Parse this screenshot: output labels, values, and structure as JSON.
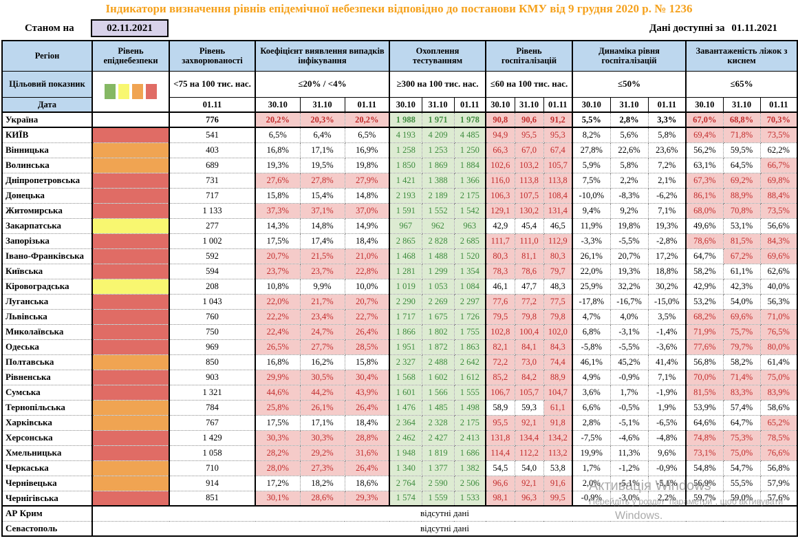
{
  "title": "Індикатори визначення рівнів епідемічної небезпеки відповідно до постанови КМУ від 9 грудня 2020 р. № 1236",
  "as_of": {
    "label": "Станом на",
    "date": "02.11.2021"
  },
  "data_available": {
    "label": "Дані доступні за",
    "date": "01.11.2021"
  },
  "colors": {
    "title_text": "#F5A11C",
    "header_bg": "#BDD7EE",
    "date_box_bg": "#D8D2EA",
    "bad_bg": "#F5CBC9",
    "bad_text": "#C22B2B",
    "good_bg": "#DDEBD2",
    "good_text": "#3D8B3D"
  },
  "legend_colors": {
    "green": "#85B864",
    "yellow": "#F8F770",
    "orange": "#F0A452",
    "red": "#E06C65"
  },
  "header": {
    "region": "Регіон",
    "target_label": "Цільовий показник",
    "date_label": "Дата",
    "groups": [
      {
        "label": "Рівень епіднебезпеки",
        "type": "level"
      },
      {
        "label": "Рівень захворюваності",
        "target": "<75 на 100 тис. нас.",
        "dates": [
          "01.11"
        ]
      },
      {
        "label": "Коефіцієнт виявлення випадків інфікування",
        "target": "≤20% / <4%",
        "dates": [
          "30.10",
          "31.10",
          "01.11"
        ]
      },
      {
        "label": "Охоплення тестуванням",
        "target": "≥300 на 100 тис. нас.",
        "dates": [
          "30.10",
          "31.10",
          "01.11"
        ]
      },
      {
        "label": "Рівень госпіталізацій",
        "target": "≤60 на 100 тис. нас.",
        "dates": [
          "30.10",
          "31.10",
          "01.11"
        ]
      },
      {
        "label": "Динаміка рівня госпіталізацій",
        "target": "≤50%",
        "dates": [
          "30.10",
          "31.10",
          "01.11"
        ]
      },
      {
        "label": "Завантаженість ліжок з киснем",
        "target": "≤65%",
        "dates": [
          "30.10",
          "31.10",
          "01.11"
        ]
      }
    ]
  },
  "thresholds": {
    "detection_max": 20,
    "hospitalization_max": 60,
    "beds_max": 65
  },
  "rows": [
    {
      "region": "Україна",
      "level": null,
      "total": true,
      "incidence": "776",
      "detection": [
        "20,2%",
        "20,3%",
        "20,2%"
      ],
      "testing": [
        "1 988",
        "1 971",
        "1 978"
      ],
      "hospitalization": [
        "90,8",
        "90,6",
        "91,2"
      ],
      "dynamics": [
        "5,5%",
        "2,8%",
        "3,3%"
      ],
      "beds": [
        "67,0%",
        "68,8%",
        "70,3%"
      ]
    },
    {
      "region": "КИЇВ",
      "level": "red",
      "incidence": "541",
      "detection": [
        "6,5%",
        "6,4%",
        "6,5%"
      ],
      "testing": [
        "4 193",
        "4 209",
        "4 485"
      ],
      "hospitalization": [
        "94,9",
        "95,5",
        "95,3"
      ],
      "dynamics": [
        "8,2%",
        "5,6%",
        "5,8%"
      ],
      "beds": [
        "69,4%",
        "71,8%",
        "73,5%"
      ]
    },
    {
      "region": "Вінницька",
      "level": "orange",
      "incidence": "403",
      "detection": [
        "16,8%",
        "17,1%",
        "16,9%"
      ],
      "testing": [
        "1 258",
        "1 253",
        "1 250"
      ],
      "hospitalization": [
        "66,3",
        "67,0",
        "67,4"
      ],
      "dynamics": [
        "27,8%",
        "22,6%",
        "23,6%"
      ],
      "beds": [
        "56,2%",
        "59,5%",
        "62,2%"
      ]
    },
    {
      "region": "Волинська",
      "level": "orange",
      "incidence": "689",
      "detection": [
        "19,3%",
        "19,5%",
        "19,8%"
      ],
      "testing": [
        "1 850",
        "1 869",
        "1 884"
      ],
      "hospitalization": [
        "102,6",
        "103,2",
        "105,7"
      ],
      "dynamics": [
        "5,9%",
        "5,8%",
        "7,2%"
      ],
      "beds": [
        "63,1%",
        "64,5%",
        "66,7%"
      ]
    },
    {
      "region": "Дніпропетровська",
      "level": "red",
      "incidence": "731",
      "detection": [
        "27,6%",
        "27,8%",
        "27,9%"
      ],
      "testing": [
        "1 421",
        "1 388",
        "1 366"
      ],
      "hospitalization": [
        "116,0",
        "113,8",
        "113,8"
      ],
      "dynamics": [
        "7,5%",
        "2,2%",
        "2,1%"
      ],
      "beds": [
        "67,3%",
        "69,2%",
        "69,8%"
      ]
    },
    {
      "region": "Донецька",
      "level": "red",
      "incidence": "717",
      "detection": [
        "15,8%",
        "15,4%",
        "14,8%"
      ],
      "testing": [
        "2 193",
        "2 189",
        "2 175"
      ],
      "hospitalization": [
        "106,3",
        "107,5",
        "108,4"
      ],
      "dynamics": [
        "-10,0%",
        "-8,3%",
        "-6,2%"
      ],
      "beds": [
        "86,1%",
        "88,9%",
        "88,4%"
      ]
    },
    {
      "region": "Житомирська",
      "level": "red",
      "incidence": "1 133",
      "detection": [
        "37,3%",
        "37,1%",
        "37,0%"
      ],
      "testing": [
        "1 591",
        "1 552",
        "1 542"
      ],
      "hospitalization": [
        "129,1",
        "130,2",
        "131,4"
      ],
      "dynamics": [
        "9,4%",
        "9,2%",
        "7,1%"
      ],
      "beds": [
        "68,0%",
        "70,8%",
        "73,5%"
      ]
    },
    {
      "region": "Закарпатська",
      "level": "yellow",
      "incidence": "277",
      "detection": [
        "14,3%",
        "14,8%",
        "14,9%"
      ],
      "testing": [
        "967",
        "962",
        "963"
      ],
      "hospitalization": [
        "42,9",
        "45,4",
        "46,5"
      ],
      "dynamics": [
        "11,9%",
        "19,8%",
        "19,3%"
      ],
      "beds": [
        "49,6%",
        "53,1%",
        "56,6%"
      ]
    },
    {
      "region": "Запорізька",
      "level": "red",
      "incidence": "1 002",
      "detection": [
        "17,5%",
        "17,4%",
        "18,4%"
      ],
      "testing": [
        "2 865",
        "2 828",
        "2 685"
      ],
      "hospitalization": [
        "111,7",
        "111,0",
        "112,9"
      ],
      "dynamics": [
        "-3,3%",
        "-5,5%",
        "-2,8%"
      ],
      "beds": [
        "78,6%",
        "81,5%",
        "84,3%"
      ]
    },
    {
      "region": "Івано-Франківська",
      "level": "red",
      "incidence": "592",
      "detection": [
        "20,7%",
        "21,5%",
        "21,0%"
      ],
      "testing": [
        "1 468",
        "1 488",
        "1 520"
      ],
      "hospitalization": [
        "80,3",
        "81,1",
        "80,3"
      ],
      "dynamics": [
        "26,1%",
        "20,7%",
        "17,2%"
      ],
      "beds": [
        "64,7%",
        "67,2%",
        "69,6%"
      ]
    },
    {
      "region": "Київська",
      "level": "red",
      "incidence": "594",
      "detection": [
        "23,7%",
        "23,7%",
        "22,8%"
      ],
      "testing": [
        "1 281",
        "1 299",
        "1 354"
      ],
      "hospitalization": [
        "78,3",
        "78,6",
        "79,7"
      ],
      "dynamics": [
        "22,0%",
        "19,3%",
        "18,8%"
      ],
      "beds": [
        "58,2%",
        "61,1%",
        "62,6%"
      ]
    },
    {
      "region": "Кіровоградська",
      "level": "yellow",
      "incidence": "208",
      "detection": [
        "10,8%",
        "9,9%",
        "10,0%"
      ],
      "testing": [
        "1 019",
        "1 053",
        "1 084"
      ],
      "hospitalization": [
        "46,1",
        "47,7",
        "48,3"
      ],
      "dynamics": [
        "25,9%",
        "32,2%",
        "30,2%"
      ],
      "beds": [
        "42,9%",
        "42,3%",
        "40,0%"
      ]
    },
    {
      "region": "Луганська",
      "level": "red",
      "incidence": "1 043",
      "detection": [
        "22,0%",
        "21,7%",
        "20,7%"
      ],
      "testing": [
        "2 290",
        "2 269",
        "2 297"
      ],
      "hospitalization": [
        "77,6",
        "77,2",
        "77,5"
      ],
      "dynamics": [
        "-17,8%",
        "-16,7%",
        "-15,0%"
      ],
      "beds": [
        "53,2%",
        "54,0%",
        "56,3%"
      ]
    },
    {
      "region": "Львівська",
      "level": "red",
      "incidence": "760",
      "detection": [
        "22,2%",
        "23,4%",
        "22,7%"
      ],
      "testing": [
        "1 717",
        "1 675",
        "1 726"
      ],
      "hospitalization": [
        "79,5",
        "79,8",
        "79,8"
      ],
      "dynamics": [
        "4,7%",
        "4,0%",
        "3,5%"
      ],
      "beds": [
        "68,2%",
        "69,6%",
        "71,0%"
      ]
    },
    {
      "region": "Миколаївська",
      "level": "red",
      "incidence": "750",
      "detection": [
        "22,4%",
        "24,7%",
        "26,4%"
      ],
      "testing": [
        "1 866",
        "1 802",
        "1 755"
      ],
      "hospitalization": [
        "102,8",
        "100,4",
        "102,0"
      ],
      "dynamics": [
        "6,8%",
        "-3,1%",
        "-1,4%"
      ],
      "beds": [
        "71,9%",
        "75,7%",
        "76,5%"
      ]
    },
    {
      "region": "Одеська",
      "level": "red",
      "incidence": "969",
      "detection": [
        "26,5%",
        "27,7%",
        "28,5%"
      ],
      "testing": [
        "1 951",
        "1 872",
        "1 863"
      ],
      "hospitalization": [
        "82,1",
        "84,1",
        "84,3"
      ],
      "dynamics": [
        "-5,8%",
        "-5,5%",
        "-3,6%"
      ],
      "beds": [
        "77,6%",
        "79,7%",
        "80,0%"
      ]
    },
    {
      "region": "Полтавська",
      "level": "orange",
      "incidence": "850",
      "detection": [
        "16,8%",
        "16,2%",
        "15,8%"
      ],
      "testing": [
        "2 327",
        "2 488",
        "2 642"
      ],
      "hospitalization": [
        "72,2",
        "73,0",
        "74,4"
      ],
      "dynamics": [
        "46,1%",
        "45,2%",
        "41,4%"
      ],
      "beds": [
        "56,8%",
        "58,2%",
        "61,4%"
      ]
    },
    {
      "region": "Рівненська",
      "level": "red",
      "incidence": "903",
      "detection": [
        "29,9%",
        "30,5%",
        "30,4%"
      ],
      "testing": [
        "1 568",
        "1 602",
        "1 612"
      ],
      "hospitalization": [
        "85,2",
        "84,2",
        "88,9"
      ],
      "dynamics": [
        "4,9%",
        "-0,9%",
        "7,1%"
      ],
      "beds": [
        "70,0%",
        "71,4%",
        "75,0%"
      ]
    },
    {
      "region": "Сумська",
      "level": "red",
      "incidence": "1 321",
      "detection": [
        "44,6%",
        "44,2%",
        "43,9%"
      ],
      "testing": [
        "1 601",
        "1 566",
        "1 555"
      ],
      "hospitalization": [
        "106,7",
        "105,7",
        "104,7"
      ],
      "dynamics": [
        "3,6%",
        "1,7%",
        "-1,9%"
      ],
      "beds": [
        "81,5%",
        "83,3%",
        "83,9%"
      ]
    },
    {
      "region": "Тернопільська",
      "level": "orange",
      "incidence": "784",
      "detection": [
        "25,8%",
        "26,1%",
        "26,4%"
      ],
      "testing": [
        "1 476",
        "1 485",
        "1 498"
      ],
      "hospitalization": [
        "58,9",
        "59,3",
        "61,1"
      ],
      "dynamics": [
        "6,6%",
        "-0,5%",
        "1,9%"
      ],
      "beds": [
        "53,9%",
        "57,4%",
        "58,6%"
      ]
    },
    {
      "region": "Харківська",
      "level": "orange",
      "incidence": "767",
      "detection": [
        "17,5%",
        "17,1%",
        "18,4%"
      ],
      "testing": [
        "2 364",
        "2 328",
        "2 175"
      ],
      "hospitalization": [
        "95,5",
        "92,1",
        "91,8"
      ],
      "dynamics": [
        "2,8%",
        "-5,1%",
        "-6,5%"
      ],
      "beds": [
        "64,6%",
        "64,7%",
        "65,2%"
      ]
    },
    {
      "region": "Херсонська",
      "level": "red",
      "incidence": "1 429",
      "detection": [
        "30,3%",
        "30,3%",
        "28,8%"
      ],
      "testing": [
        "2 462",
        "2 427",
        "2 413"
      ],
      "hospitalization": [
        "131,8",
        "134,4",
        "134,2"
      ],
      "dynamics": [
        "-7,5%",
        "-4,6%",
        "-4,8%"
      ],
      "beds": [
        "74,8%",
        "75,3%",
        "78,5%"
      ]
    },
    {
      "region": "Хмельницька",
      "level": "red",
      "incidence": "1 058",
      "detection": [
        "28,2%",
        "29,2%",
        "31,6%"
      ],
      "testing": [
        "1 948",
        "1 819",
        "1 686"
      ],
      "hospitalization": [
        "114,4",
        "112,2",
        "113,2"
      ],
      "dynamics": [
        "19,9%",
        "11,3%",
        "9,6%"
      ],
      "beds": [
        "73,1%",
        "75,0%",
        "76,6%"
      ]
    },
    {
      "region": "Черкаська",
      "level": "orange",
      "incidence": "710",
      "detection": [
        "28,0%",
        "27,3%",
        "26,4%"
      ],
      "testing": [
        "1 340",
        "1 377",
        "1 382"
      ],
      "hospitalization": [
        "54,5",
        "54,0",
        "53,8"
      ],
      "dynamics": [
        "1,7%",
        "-1,2%",
        "-0,9%"
      ],
      "beds": [
        "54,8%",
        "54,7%",
        "56,8%"
      ]
    },
    {
      "region": "Чернівецька",
      "level": "orange",
      "incidence": "914",
      "detection": [
        "17,2%",
        "18,2%",
        "18,6%"
      ],
      "testing": [
        "2 764",
        "2 590",
        "2 506"
      ],
      "hospitalization": [
        "96,6",
        "92,1",
        "91,6"
      ],
      "dynamics": [
        "2,0%",
        "-5,1%",
        "-5,1%"
      ],
      "beds": [
        "56,9%",
        "55,5%",
        "57,9%"
      ]
    },
    {
      "region": "Чернігівська",
      "level": "red",
      "incidence": "851",
      "detection": [
        "30,1%",
        "28,6%",
        "29,3%"
      ],
      "testing": [
        "1 574",
        "1 559",
        "1 533"
      ],
      "hospitalization": [
        "98,1",
        "96,3",
        "99,5"
      ],
      "dynamics": [
        "-0,9%",
        "-3,0%",
        "2,2%"
      ],
      "beds": [
        "59,7%",
        "59,0%",
        "57,6%"
      ]
    }
  ],
  "no_data_rows": [
    {
      "region": "АР Крим",
      "text": "відсутні дані"
    },
    {
      "region": "Севастополь",
      "text": "відсутні дані"
    }
  ],
  "watermark": {
    "line1": "Активація Windows",
    "line2": "Перейдіть у розділ \"параметри\", щоб активувати",
    "line3": "Windows."
  }
}
